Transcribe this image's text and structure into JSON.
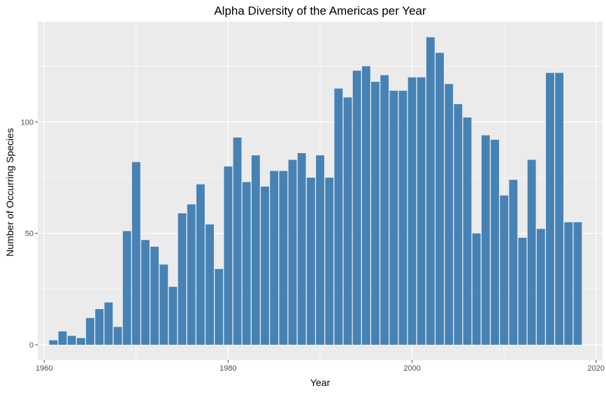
{
  "chart_data": {
    "type": "bar",
    "title": "Alpha Diversity of the Americas per Year",
    "xlabel": "Year",
    "ylabel": "Number of Occurring Species",
    "xlim": [
      1959.3,
      2020.7
    ],
    "ylim": [
      -6.9,
      145
    ],
    "x_ticks": [
      1960,
      1980,
      2000,
      2020
    ],
    "y_ticks": [
      0,
      50,
      100
    ],
    "grid": true,
    "bar_color": "#4682B4",
    "panel_color": "#EBEBEB",
    "x": [
      1961,
      1962,
      1963,
      1964,
      1965,
      1966,
      1967,
      1968,
      1969,
      1970,
      1971,
      1972,
      1973,
      1974,
      1975,
      1976,
      1977,
      1978,
      1979,
      1980,
      1981,
      1982,
      1983,
      1984,
      1985,
      1986,
      1987,
      1988,
      1989,
      1990,
      1991,
      1992,
      1993,
      1994,
      1995,
      1996,
      1997,
      1998,
      1999,
      2000,
      2001,
      2002,
      2003,
      2004,
      2005,
      2006,
      2007,
      2008,
      2009,
      2010,
      2011,
      2012,
      2013,
      2014,
      2015,
      2016,
      2017,
      2018
    ],
    "values": [
      2,
      6,
      4,
      3,
      12,
      16,
      19,
      8,
      51,
      82,
      47,
      44,
      36,
      26,
      59,
      63,
      72,
      54,
      34,
      80,
      93,
      73,
      85,
      71,
      78,
      78,
      83,
      86,
      75,
      85,
      75,
      115,
      111,
      123,
      125,
      118,
      121,
      114,
      114,
      120,
      120,
      138,
      131,
      117,
      108,
      102,
      50,
      94,
      92,
      67,
      74,
      48,
      83,
      52,
      122,
      122,
      55,
      55
    ]
  }
}
